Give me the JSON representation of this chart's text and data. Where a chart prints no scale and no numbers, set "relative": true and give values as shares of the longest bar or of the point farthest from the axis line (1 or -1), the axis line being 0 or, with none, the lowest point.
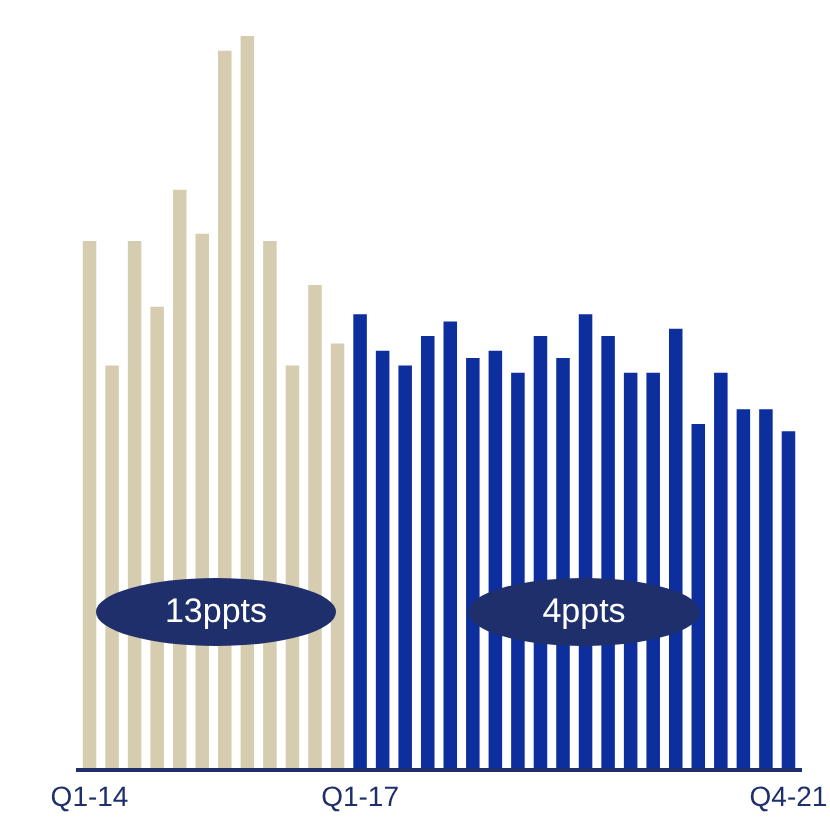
{
  "chart_data": {
    "type": "bar",
    "relative": true,
    "categories": [
      "Q1-14",
      null,
      null,
      null,
      null,
      null,
      null,
      null,
      null,
      null,
      null,
      null,
      "Q1-17",
      null,
      null,
      null,
      null,
      null,
      null,
      null,
      null,
      null,
      null,
      null,
      null,
      null,
      null,
      null,
      null,
      null,
      null,
      "Q4-21"
    ],
    "series": [
      {
        "color": "#d6ccb0",
        "values": [
          0.72,
          0.55,
          0.72,
          0.63,
          0.79,
          0.73,
          0.98,
          1.0,
          0.72,
          0.55,
          0.66,
          0.58,
          null,
          null,
          null,
          null,
          null,
          null,
          null,
          null,
          null,
          null,
          null,
          null,
          null,
          null,
          null,
          null,
          null,
          null,
          null,
          null
        ]
      },
      {
        "color": "#0d2f9e",
        "values": [
          null,
          null,
          null,
          null,
          null,
          null,
          null,
          null,
          null,
          null,
          null,
          null,
          0.62,
          0.57,
          0.55,
          0.59,
          0.61,
          0.56,
          0.57,
          0.54,
          0.59,
          0.56,
          0.62,
          0.59,
          0.54,
          0.54,
          0.6,
          0.47,
          0.54,
          0.49,
          0.49,
          0.46
        ]
      }
    ],
    "annotations": [
      "13ppts",
      "4ppts"
    ],
    "grid": false
  }
}
